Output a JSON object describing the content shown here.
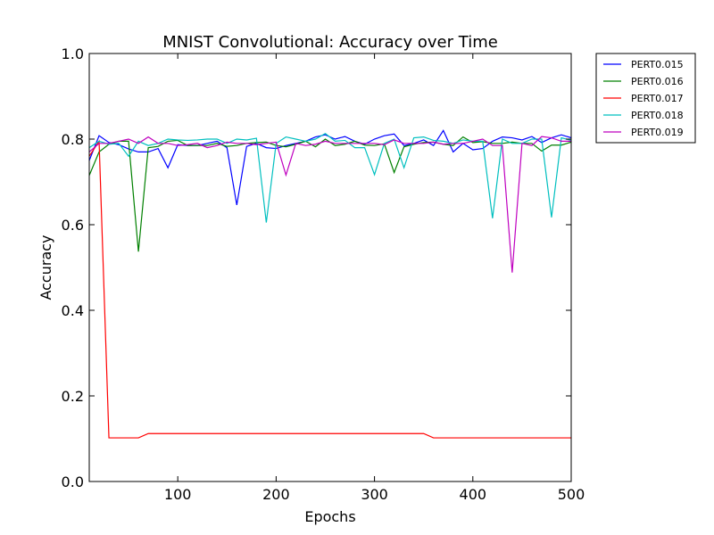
{
  "chart_data": {
    "type": "line",
    "title": "MNIST Convolutional: Accuracy over Time",
    "xlabel": "Epochs",
    "ylabel": "Accuracy",
    "xlim": [
      10,
      500
    ],
    "ylim": [
      0.0,
      1.0
    ],
    "xticks": [
      100,
      200,
      300,
      400,
      500
    ],
    "yticks": [
      0.0,
      0.2,
      0.4,
      0.6,
      0.8,
      1.0
    ],
    "ytick_labels": [
      "0.0",
      "0.2",
      "0.4",
      "0.6",
      "0.8",
      "1.0"
    ],
    "grid": false,
    "legend_placement": "outside-top-right",
    "x": [
      10,
      20,
      30,
      40,
      50,
      60,
      70,
      80,
      90,
      100,
      110,
      120,
      130,
      140,
      150,
      160,
      170,
      180,
      190,
      200,
      210,
      220,
      230,
      240,
      250,
      260,
      270,
      280,
      290,
      300,
      310,
      320,
      330,
      340,
      350,
      360,
      370,
      380,
      390,
      400,
      410,
      420,
      430,
      440,
      450,
      460,
      470,
      480,
      490,
      500
    ],
    "series": [
      {
        "name": "PERT0.015",
        "color": "#0000ff",
        "values": [
          0.75,
          0.808,
          0.792,
          0.787,
          0.777,
          0.77,
          0.77,
          0.778,
          0.733,
          0.787,
          0.785,
          0.785,
          0.79,
          0.795,
          0.78,
          0.646,
          0.783,
          0.79,
          0.78,
          0.778,
          0.785,
          0.79,
          0.795,
          0.805,
          0.81,
          0.8,
          0.806,
          0.795,
          0.788,
          0.8,
          0.808,
          0.812,
          0.785,
          0.79,
          0.798,
          0.785,
          0.82,
          0.77,
          0.79,
          0.775,
          0.778,
          0.795,
          0.805,
          0.803,
          0.798,
          0.806,
          0.792,
          0.803,
          0.81,
          0.803
        ]
      },
      {
        "name": "PERT0.016",
        "color": "#008000",
        "values": [
          0.715,
          0.77,
          0.788,
          0.795,
          0.795,
          0.537,
          0.78,
          0.783,
          0.795,
          0.797,
          0.785,
          0.785,
          0.785,
          0.79,
          0.783,
          0.785,
          0.79,
          0.792,
          0.793,
          0.785,
          0.782,
          0.788,
          0.795,
          0.782,
          0.8,
          0.785,
          0.788,
          0.795,
          0.786,
          0.785,
          0.789,
          0.722,
          0.782,
          0.788,
          0.792,
          0.793,
          0.788,
          0.785,
          0.805,
          0.792,
          0.794,
          0.79,
          0.79,
          0.793,
          0.79,
          0.79,
          0.772,
          0.786,
          0.786,
          0.793
        ]
      },
      {
        "name": "PERT0.017",
        "color": "#ff0000",
        "values": [
          0.76,
          0.795,
          0.102,
          0.102,
          0.102,
          0.102,
          0.112,
          0.112,
          0.112,
          0.112,
          0.112,
          0.112,
          0.112,
          0.112,
          0.112,
          0.112,
          0.112,
          0.112,
          0.112,
          0.112,
          0.112,
          0.112,
          0.112,
          0.112,
          0.112,
          0.112,
          0.112,
          0.112,
          0.112,
          0.112,
          0.112,
          0.112,
          0.112,
          0.112,
          0.112,
          0.102,
          0.102,
          0.102,
          0.102,
          0.102,
          0.102,
          0.102,
          0.102,
          0.102,
          0.102,
          0.102,
          0.102,
          0.102,
          0.102,
          0.102
        ]
      },
      {
        "name": "PERT0.018",
        "color": "#00bfbf",
        "values": [
          0.78,
          0.795,
          0.788,
          0.79,
          0.76,
          0.795,
          0.785,
          0.79,
          0.8,
          0.798,
          0.797,
          0.798,
          0.8,
          0.8,
          0.79,
          0.8,
          0.798,
          0.802,
          0.605,
          0.79,
          0.805,
          0.8,
          0.795,
          0.8,
          0.813,
          0.795,
          0.797,
          0.78,
          0.78,
          0.717,
          0.79,
          0.8,
          0.733,
          0.803,
          0.805,
          0.797,
          0.795,
          0.79,
          0.798,
          0.795,
          0.795,
          0.615,
          0.8,
          0.79,
          0.79,
          0.8,
          0.8,
          0.617,
          0.803,
          0.797
        ]
      },
      {
        "name": "PERT0.019",
        "color": "#bf00bf",
        "values": [
          0.77,
          0.79,
          0.79,
          0.795,
          0.8,
          0.79,
          0.805,
          0.79,
          0.79,
          0.785,
          0.787,
          0.79,
          0.78,
          0.785,
          0.793,
          0.79,
          0.79,
          0.787,
          0.79,
          0.793,
          0.716,
          0.79,
          0.785,
          0.788,
          0.795,
          0.79,
          0.79,
          0.79,
          0.79,
          0.79,
          0.787,
          0.798,
          0.79,
          0.79,
          0.79,
          0.793,
          0.788,
          0.79,
          0.79,
          0.795,
          0.8,
          0.785,
          0.785,
          0.488,
          0.79,
          0.785,
          0.806,
          0.803,
          0.795,
          0.795
        ]
      }
    ]
  }
}
